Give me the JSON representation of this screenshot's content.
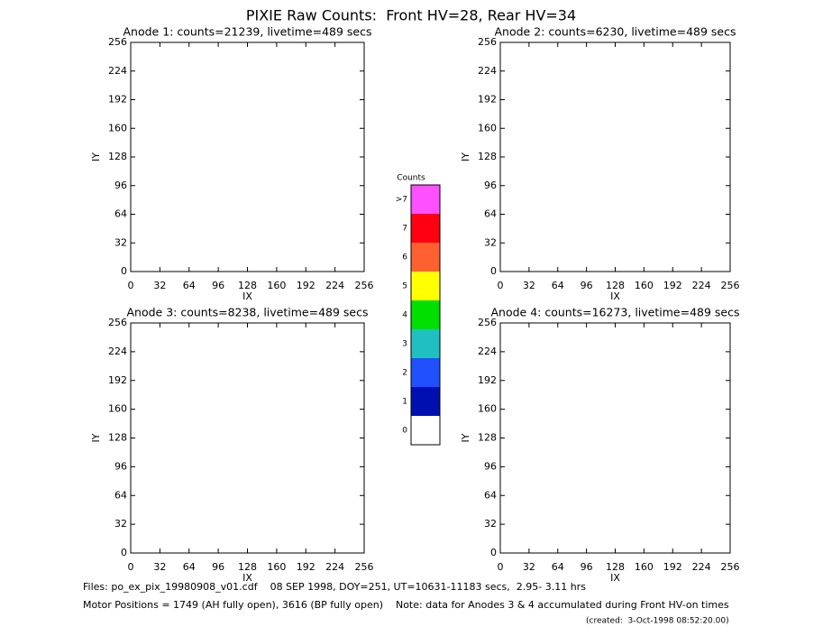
{
  "title": "PIXIE Raw Counts:  Front HV=28, Rear HV=34",
  "chart_data": [
    {
      "type": "heatmap",
      "title": "Anode 1: counts=21239, livetime=489 secs",
      "xlabel": "IX",
      "ylabel": "IY",
      "xlim": [
        0,
        256
      ],
      "ylim": [
        0,
        256
      ],
      "xticks": [
        0,
        32,
        64,
        96,
        128,
        160,
        192,
        224,
        256
      ],
      "yticks": [
        0,
        32,
        64,
        96,
        128,
        160,
        192,
        224,
        256
      ]
    },
    {
      "type": "heatmap",
      "title": "Anode 2: counts=6230, livetime=489 secs",
      "xlabel": "IX",
      "ylabel": "IY",
      "xlim": [
        0,
        256
      ],
      "ylim": [
        0,
        256
      ],
      "xticks": [
        0,
        32,
        64,
        96,
        128,
        160,
        192,
        224,
        256
      ],
      "yticks": [
        0,
        32,
        64,
        96,
        128,
        160,
        192,
        224,
        256
      ]
    },
    {
      "type": "heatmap",
      "title": "Anode 3: counts=8238, livetime=489 secs",
      "xlabel": "IX",
      "ylabel": "IY",
      "xlim": [
        0,
        256
      ],
      "ylim": [
        0,
        256
      ],
      "xticks": [
        0,
        32,
        64,
        96,
        128,
        160,
        192,
        224,
        256
      ],
      "yticks": [
        0,
        32,
        64,
        96,
        128,
        160,
        192,
        224,
        256
      ]
    },
    {
      "type": "heatmap",
      "title": "Anode 4: counts=16273, livetime=489 secs",
      "xlabel": "IX",
      "ylabel": "IY",
      "xlim": [
        0,
        256
      ],
      "ylim": [
        0,
        256
      ],
      "xticks": [
        0,
        32,
        64,
        96,
        128,
        160,
        192,
        224,
        256
      ],
      "yticks": [
        0,
        32,
        64,
        96,
        128,
        160,
        192,
        224,
        256
      ]
    }
  ],
  "colorbar": {
    "title": "Counts",
    "labels": [
      "0",
      "1",
      "2",
      "3",
      "4",
      "5",
      "6",
      "7",
      ">7"
    ],
    "colors": [
      "#ffffff",
      "#0010b0",
      "#2050ff",
      "#20c0c0",
      "#00e000",
      "#ffff00",
      "#ff6030",
      "#ff0010",
      "#ff50ff"
    ]
  },
  "footer": {
    "files": "Files: po_ex_pix_19980908_v01.cdf    08 SEP 1998, DOY=251, UT=10631-11183 secs,  2.95- 3.11 hrs",
    "motor": "Motor Positions = 1749 (AH fully open), 3616 (BP fully open)    Note: data for Anodes 3 & 4 accumulated during Front HV-on times",
    "created": "(created:  3-Oct-1998 08:52:20.00)"
  }
}
